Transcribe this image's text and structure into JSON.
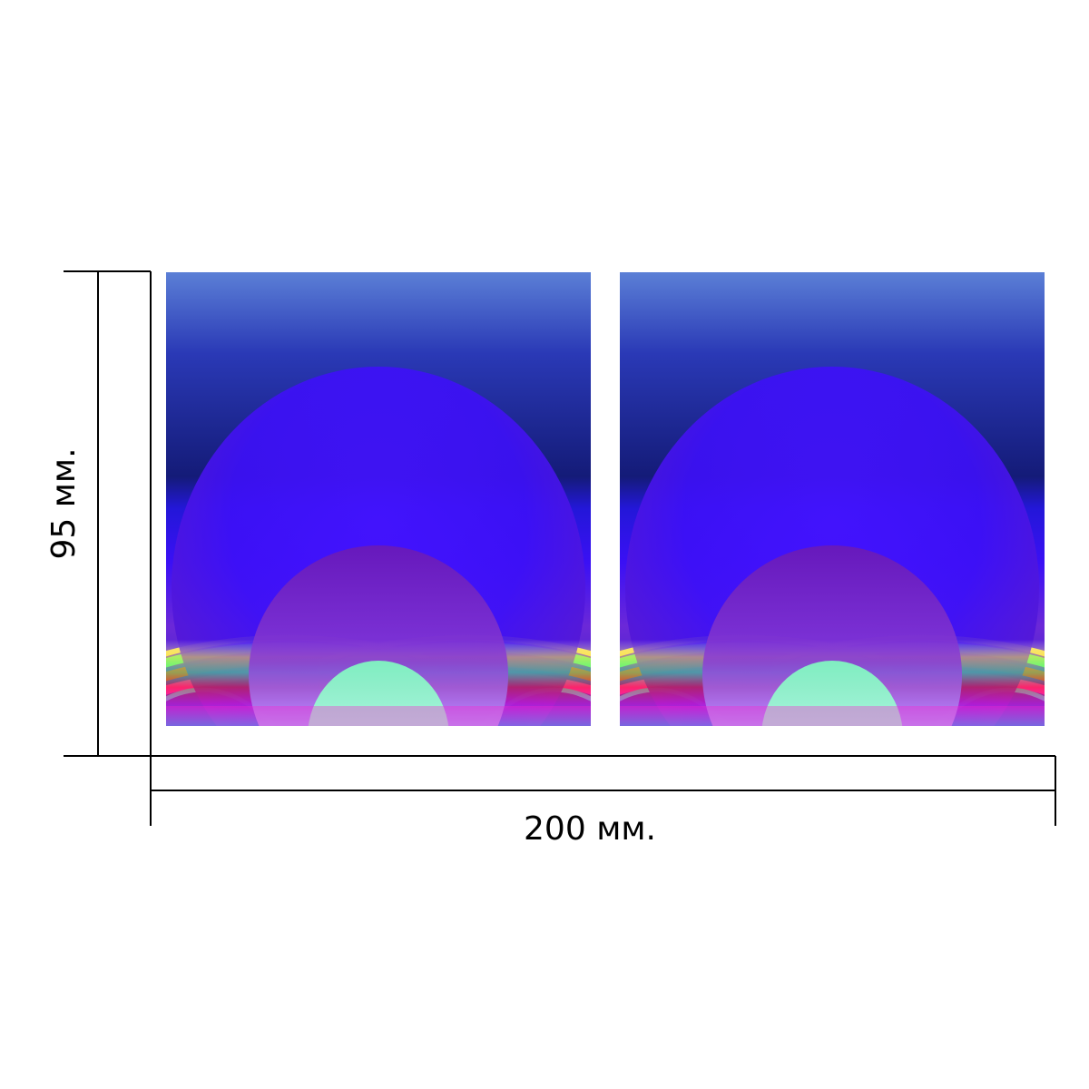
{
  "dimensions": {
    "height_label": "95 мм.",
    "width_label": "200 мм."
  },
  "panels": [
    {
      "name": "left-panel"
    },
    {
      "name": "right-panel"
    }
  ],
  "colors": {
    "sky_top": "#5b7fd6",
    "sky_dark": "#1a1f8a",
    "violet": "#3a10f5",
    "magenta": "#ff1fd0",
    "red": "#ff2a1a",
    "green": "#4bff7a",
    "mint": "#8effc8",
    "cyan": "#35e6ff",
    "yellow": "#ffe84a"
  }
}
